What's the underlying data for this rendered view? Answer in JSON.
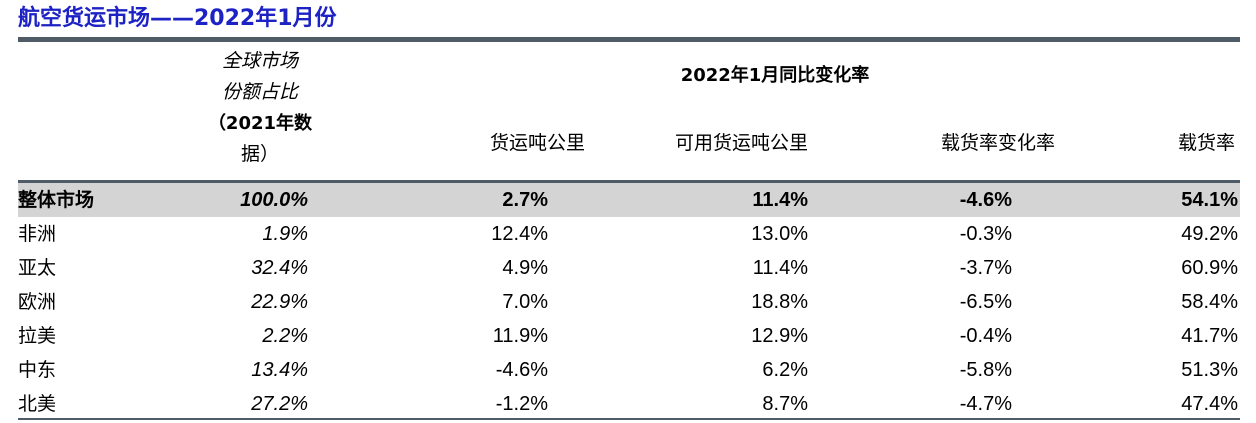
{
  "title": "航空货运市场——2022年1月份",
  "header": {
    "share_lines": [
      "全球市场",
      "份额占比",
      "（2021年数",
      "据）"
    ],
    "group_label": "2022年1月同比变化率",
    "columns": [
      "货运吨公里",
      "可用货运吨公里",
      "载货率变化率",
      "载货率"
    ]
  },
  "rows": [
    {
      "region": "整体市场",
      "share": "100.0%",
      "ctk": "2.7%",
      "actk": "11.4%",
      "lf_change": "-4.6%",
      "lf": "54.1%"
    },
    {
      "region": "非洲",
      "share": "1.9%",
      "ctk": "12.4%",
      "actk": "13.0%",
      "lf_change": "-0.3%",
      "lf": "49.2%"
    },
    {
      "region": "亚太",
      "share": "32.4%",
      "ctk": "4.9%",
      "actk": "11.4%",
      "lf_change": "-3.7%",
      "lf": "60.9%"
    },
    {
      "region": "欧洲",
      "share": "22.9%",
      "ctk": "7.0%",
      "actk": "18.8%",
      "lf_change": "-6.5%",
      "lf": "58.4%"
    },
    {
      "region": "拉美",
      "share": "2.2%",
      "ctk": "11.9%",
      "actk": "12.9%",
      "lf_change": "-0.4%",
      "lf": "41.7%"
    },
    {
      "region": "中东",
      "share": "13.4%",
      "ctk": "-4.6%",
      "actk": "6.2%",
      "lf_change": "-5.8%",
      "lf": "51.3%"
    },
    {
      "region": "北美",
      "share": "27.2%",
      "ctk": "-1.2%",
      "actk": "8.7%",
      "lf_change": "-4.7%",
      "lf": "47.4%"
    }
  ]
}
